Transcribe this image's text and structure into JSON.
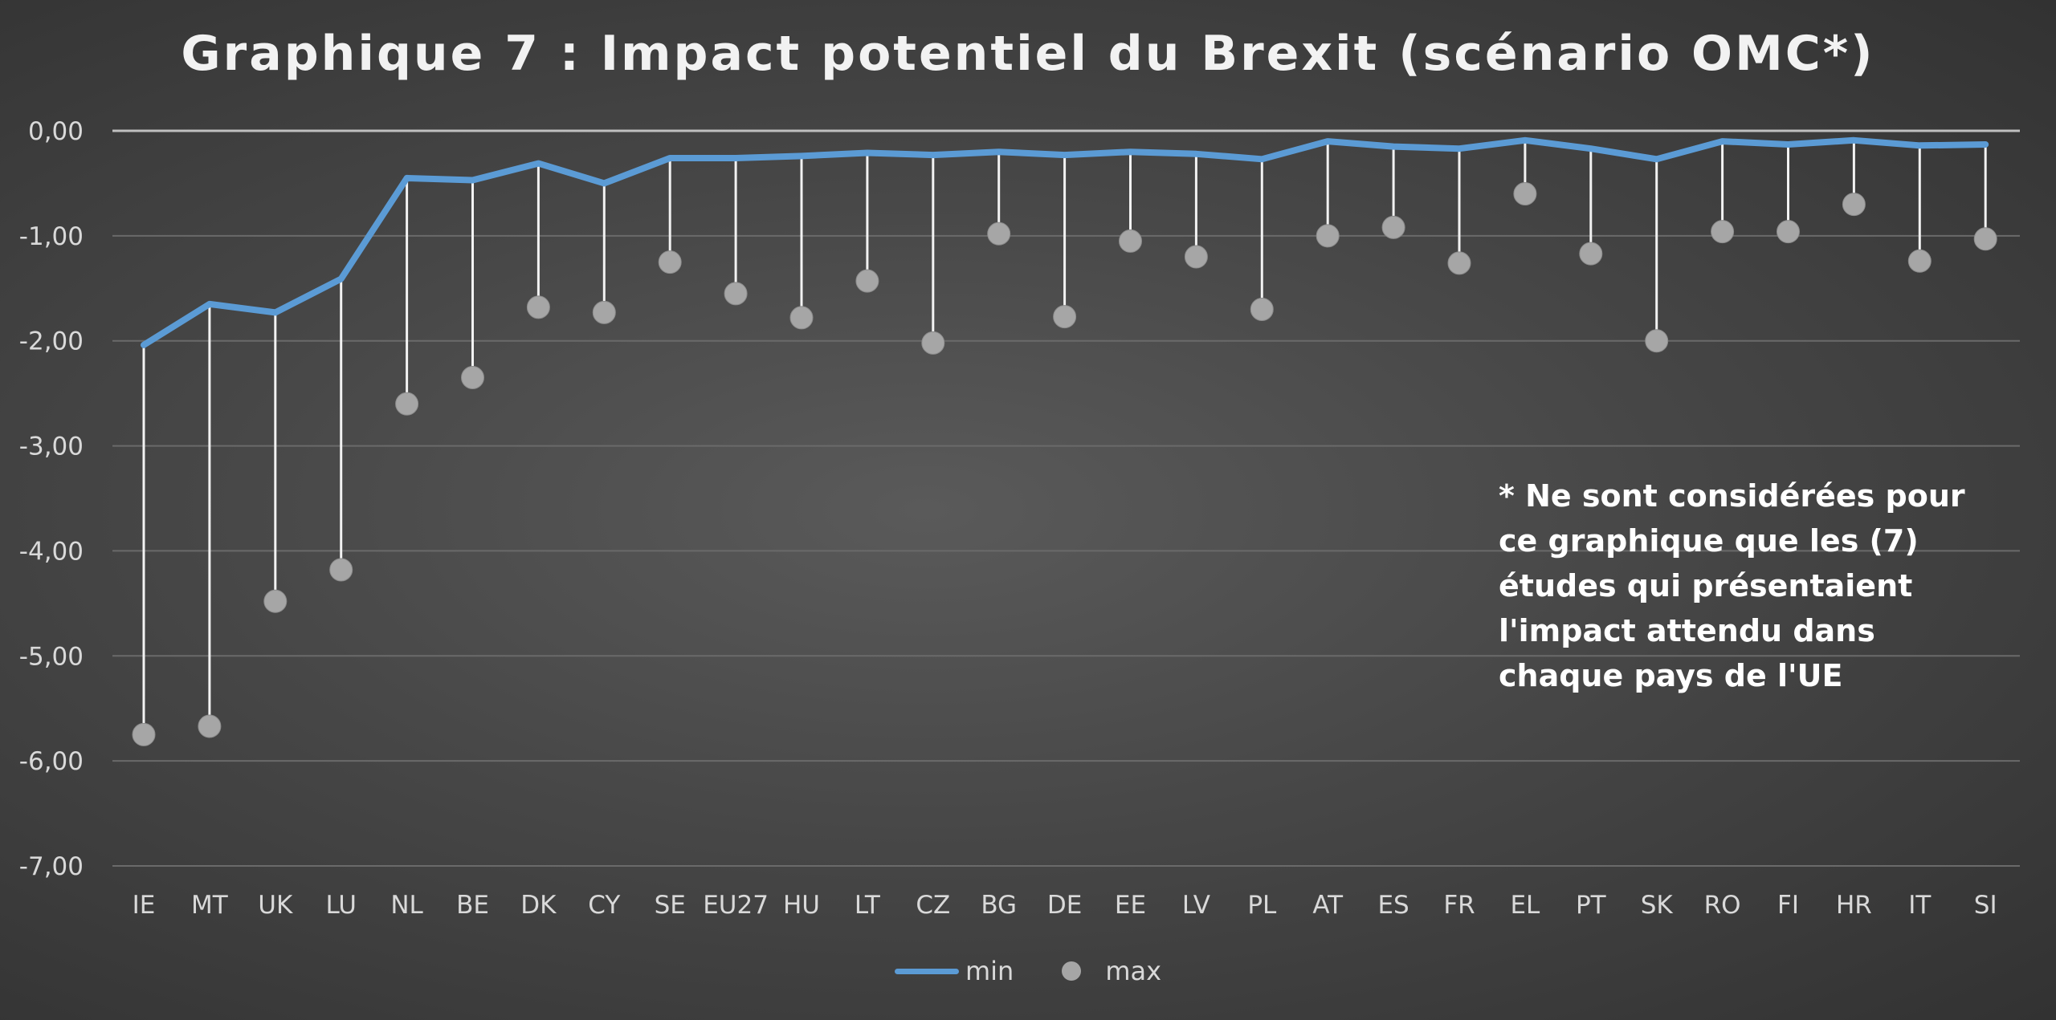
{
  "chart_data": {
    "type": "line",
    "title": "Graphique 7 : Impact potentiel du Brexit (scénario OMC*)",
    "xlabel": "",
    "ylabel": "",
    "ylim": [
      -7,
      0
    ],
    "yticks": [
      0,
      -1,
      -2,
      -3,
      -4,
      -5,
      -6,
      -7
    ],
    "ytick_labels": [
      "0,00",
      "-1,00",
      "-2,00",
      "-3,00",
      "-4,00",
      "-5,00",
      "-6,00",
      "-7,00"
    ],
    "grid": true,
    "legend_position": "bottom",
    "categories": [
      "IE",
      "MT",
      "UK",
      "LU",
      "NL",
      "BE",
      "DK",
      "CY",
      "SE",
      "EU27",
      "HU",
      "LT",
      "CZ",
      "BG",
      "DE",
      "EE",
      "LV",
      "PL",
      "AT",
      "ES",
      "FR",
      "EL",
      "PT",
      "SK",
      "RO",
      "FI",
      "HR",
      "IT",
      "SI"
    ],
    "series": [
      {
        "name": "min",
        "style": "line",
        "color": "#5b9bd5",
        "values": [
          -2.04,
          -1.65,
          -1.73,
          -1.41,
          -0.45,
          -0.47,
          -0.31,
          -0.5,
          -0.26,
          -0.26,
          -0.24,
          -0.21,
          -0.23,
          -0.2,
          -0.23,
          -0.2,
          -0.22,
          -0.27,
          -0.1,
          -0.15,
          -0.17,
          -0.09,
          -0.17,
          -0.27,
          -0.1,
          -0.13,
          -0.09,
          -0.14,
          -0.13
        ]
      },
      {
        "name": "max",
        "style": "marker",
        "color": "#a6a6a6",
        "values": [
          -5.75,
          -5.67,
          -4.48,
          -4.18,
          -2.6,
          -2.35,
          -1.68,
          -1.73,
          -1.25,
          -1.55,
          -1.78,
          -1.43,
          -2.02,
          -0.98,
          -1.77,
          -1.05,
          -1.2,
          -1.7,
          -1.0,
          -0.92,
          -1.26,
          -0.6,
          -1.17,
          -2.0,
          -0.96,
          -0.96,
          -0.7,
          -1.24,
          -1.03
        ]
      }
    ],
    "annotation": "* Ne sont considérées pour ce graphique que les (7) études qui présentaient l'impact attendu dans chaque pays de l'UE"
  }
}
